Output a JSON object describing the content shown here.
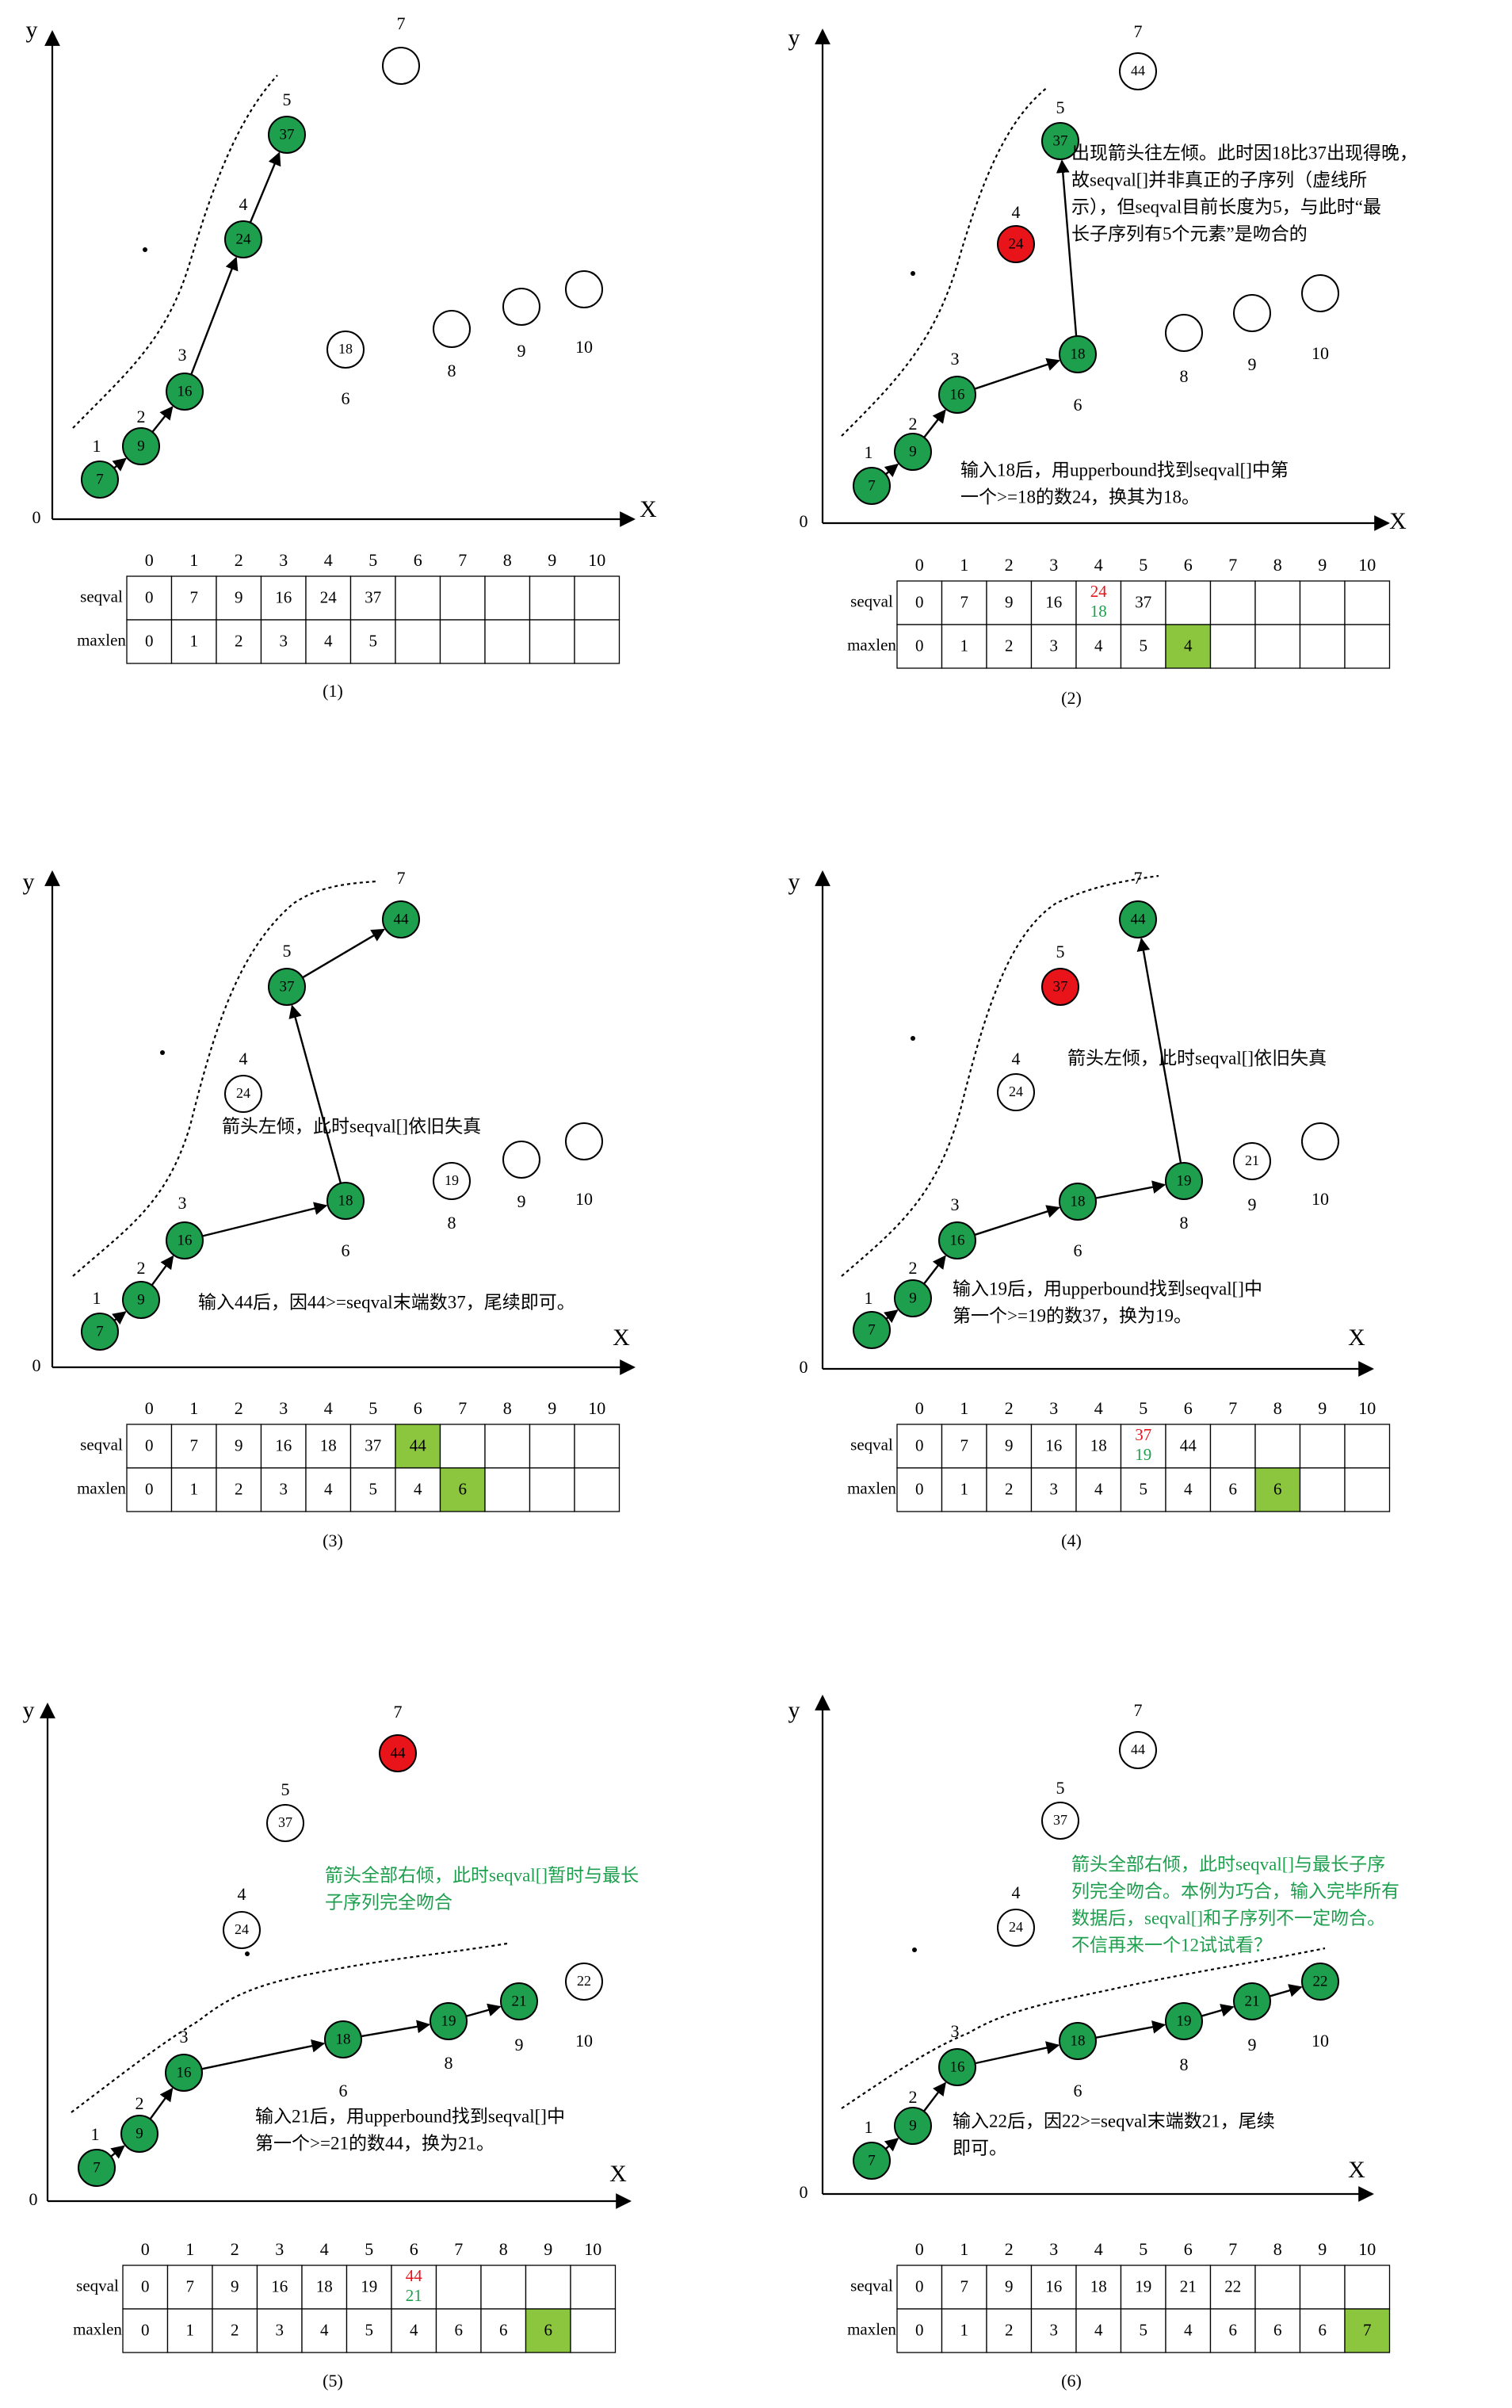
{
  "colors": {
    "green": "#1e9f4e",
    "red": "#e8141a",
    "cell_green": "#8cc63f",
    "text_red": "#e8141a",
    "text_green": "#1e9f4e",
    "ink": "#000000"
  },
  "axis_labels": {
    "x": "X",
    "y": "y",
    "origin": "0"
  },
  "table_row_labels": [
    "seqval",
    "maxlen"
  ],
  "table_indices": [
    "0",
    "1",
    "2",
    "3",
    "4",
    "5",
    "6",
    "7",
    "8",
    "9",
    "10"
  ],
  "panels": [
    {
      "caption": "(1)",
      "nodes": [
        {
          "idx": "1",
          "val": "7",
          "state": "green"
        },
        {
          "idx": "2",
          "val": "9",
          "state": "green"
        },
        {
          "idx": "3",
          "val": "16",
          "state": "green"
        },
        {
          "idx": "4",
          "val": "24",
          "state": "green"
        },
        {
          "idx": "5",
          "val": "37",
          "state": "green"
        },
        {
          "idx": "6",
          "val": "18",
          "state": "white"
        },
        {
          "idx": "7",
          "val": "",
          "state": "white"
        },
        {
          "idx": "8",
          "val": "",
          "state": "white"
        },
        {
          "idx": "9",
          "val": "",
          "state": "white"
        },
        {
          "idx": "10",
          "val": "",
          "state": "white"
        }
      ],
      "annotations": [],
      "seqval": [
        "0",
        "7",
        "9",
        "16",
        "24",
        "37",
        "",
        "",
        "",
        "",
        ""
      ],
      "maxlen": [
        "0",
        "1",
        "2",
        "3",
        "4",
        "5",
        "",
        "",
        "",
        "",
        ""
      ],
      "seqval_change": null,
      "maxlen_highlight": null
    },
    {
      "caption": "(2)",
      "nodes": [
        {
          "idx": "1",
          "val": "7",
          "state": "green"
        },
        {
          "idx": "2",
          "val": "9",
          "state": "green"
        },
        {
          "idx": "3",
          "val": "16",
          "state": "green"
        },
        {
          "idx": "4",
          "val": "24",
          "state": "red"
        },
        {
          "idx": "5",
          "val": "37",
          "state": "green"
        },
        {
          "idx": "6",
          "val": "18",
          "state": "green"
        },
        {
          "idx": "7",
          "val": "44",
          "state": "white"
        },
        {
          "idx": "8",
          "val": "",
          "state": "white"
        },
        {
          "idx": "9",
          "val": "",
          "state": "white"
        },
        {
          "idx": "10",
          "val": "",
          "state": "white"
        }
      ],
      "annotations": [
        {
          "color": "black",
          "lines": [
            "出现箭头往左倾。此时因18比37出现得晚，",
            "故seqval[]并非真正的子序列（虚线所",
            "示），但seqval目前长度为5，与此时“最",
            "长子序列有5个元素”是吻合的"
          ]
        },
        {
          "color": "black",
          "lines": [
            "输入18后，用upperbound找到seqval[]中第",
            "一个>=18的数24，换其为18。"
          ]
        }
      ],
      "seqval": [
        "0",
        "7",
        "9",
        "16",
        "",
        "37",
        "",
        "",
        "",
        "",
        ""
      ],
      "maxlen": [
        "0",
        "1",
        "2",
        "3",
        "4",
        "5",
        "4",
        "",
        "",
        "",
        ""
      ],
      "seqval_change": {
        "col": 4,
        "old": "24",
        "new": "18"
      },
      "maxlen_highlight": 6
    },
    {
      "caption": "(3)",
      "nodes": [
        {
          "idx": "1",
          "val": "7",
          "state": "green"
        },
        {
          "idx": "2",
          "val": "9",
          "state": "green"
        },
        {
          "idx": "3",
          "val": "16",
          "state": "green"
        },
        {
          "idx": "4",
          "val": "24",
          "state": "white"
        },
        {
          "idx": "5",
          "val": "37",
          "state": "green"
        },
        {
          "idx": "6",
          "val": "18",
          "state": "green"
        },
        {
          "idx": "7",
          "val": "44",
          "state": "green"
        },
        {
          "idx": "8",
          "val": "19",
          "state": "white"
        },
        {
          "idx": "9",
          "val": "",
          "state": "white"
        },
        {
          "idx": "10",
          "val": "",
          "state": "white"
        }
      ],
      "annotations": [
        {
          "color": "black",
          "lines": [
            "箭头左倾，此时seqval[]依旧失真"
          ]
        },
        {
          "color": "black",
          "lines": [
            "输入44后，因44>=seqval末端数37，尾续即可。"
          ]
        }
      ],
      "seqval": [
        "0",
        "7",
        "9",
        "16",
        "18",
        "37",
        "44",
        "",
        "",
        "",
        ""
      ],
      "maxlen": [
        "0",
        "1",
        "2",
        "3",
        "4",
        "5",
        "4",
        "6",
        "",
        "",
        ""
      ],
      "seqval_change": null,
      "seqval_highlight": 6,
      "maxlen_highlight": 7
    },
    {
      "caption": "(4)",
      "nodes": [
        {
          "idx": "1",
          "val": "7",
          "state": "green"
        },
        {
          "idx": "2",
          "val": "9",
          "state": "green"
        },
        {
          "idx": "3",
          "val": "16",
          "state": "green"
        },
        {
          "idx": "4",
          "val": "24",
          "state": "white"
        },
        {
          "idx": "5",
          "val": "37",
          "state": "red"
        },
        {
          "idx": "6",
          "val": "18",
          "state": "green"
        },
        {
          "idx": "7",
          "val": "44",
          "state": "green"
        },
        {
          "idx": "8",
          "val": "19",
          "state": "green"
        },
        {
          "idx": "9",
          "val": "21",
          "state": "white"
        },
        {
          "idx": "10",
          "val": "",
          "state": "white"
        }
      ],
      "annotations": [
        {
          "color": "black",
          "lines": [
            "箭头左倾，此时seqval[]依旧失真"
          ]
        },
        {
          "color": "black",
          "lines": [
            "输入19后，用upperbound找到seqval[]中",
            "第一个>=19的数37，换为19。"
          ]
        }
      ],
      "seqval": [
        "0",
        "7",
        "9",
        "16",
        "18",
        "",
        "44",
        "",
        "",
        "",
        ""
      ],
      "maxlen": [
        "0",
        "1",
        "2",
        "3",
        "4",
        "5",
        "4",
        "6",
        "6",
        "",
        ""
      ],
      "seqval_change": {
        "col": 5,
        "old": "37",
        "new": "19"
      },
      "maxlen_highlight": 8
    },
    {
      "caption": "(5)",
      "nodes": [
        {
          "idx": "1",
          "val": "7",
          "state": "green"
        },
        {
          "idx": "2",
          "val": "9",
          "state": "green"
        },
        {
          "idx": "3",
          "val": "16",
          "state": "green"
        },
        {
          "idx": "4",
          "val": "24",
          "state": "white"
        },
        {
          "idx": "5",
          "val": "37",
          "state": "white"
        },
        {
          "idx": "6",
          "val": "18",
          "state": "green"
        },
        {
          "idx": "7",
          "val": "44",
          "state": "red"
        },
        {
          "idx": "8",
          "val": "19",
          "state": "green"
        },
        {
          "idx": "9",
          "val": "21",
          "state": "green"
        },
        {
          "idx": "10",
          "val": "22",
          "state": "white"
        }
      ],
      "annotations": [
        {
          "color": "green",
          "lines": [
            "箭头全部右倾，此时seqval[]暂时与最长",
            "子序列完全吻合"
          ]
        },
        {
          "color": "black",
          "lines": [
            "输入21后，用upperbound找到seqval[]中",
            "第一个>=21的数44，换为21。"
          ]
        }
      ],
      "seqval": [
        "0",
        "7",
        "9",
        "16",
        "18",
        "19",
        "",
        "",
        "",
        "",
        ""
      ],
      "maxlen": [
        "0",
        "1",
        "2",
        "3",
        "4",
        "5",
        "4",
        "6",
        "6",
        "6",
        ""
      ],
      "seqval_change": {
        "col": 6,
        "old": "44",
        "new": "21"
      },
      "maxlen_highlight": 9
    },
    {
      "caption": "(6)",
      "nodes": [
        {
          "idx": "1",
          "val": "7",
          "state": "green"
        },
        {
          "idx": "2",
          "val": "9",
          "state": "green"
        },
        {
          "idx": "3",
          "val": "16",
          "state": "green"
        },
        {
          "idx": "4",
          "val": "24",
          "state": "white"
        },
        {
          "idx": "5",
          "val": "37",
          "state": "white"
        },
        {
          "idx": "6",
          "val": "18",
          "state": "green"
        },
        {
          "idx": "7",
          "val": "44",
          "state": "white"
        },
        {
          "idx": "8",
          "val": "19",
          "state": "green"
        },
        {
          "idx": "9",
          "val": "21",
          "state": "green"
        },
        {
          "idx": "10",
          "val": "22",
          "state": "green"
        }
      ],
      "annotations": [
        {
          "color": "green",
          "lines": [
            "箭头全部右倾，此时seqval[]与最长子序",
            "列完全吻合。本例为巧合，输入完毕所有",
            "数据后，seqval[]和子序列不一定吻合。",
            "不信再来一个12试试看？"
          ]
        },
        {
          "color": "black",
          "lines": [
            "输入22后，因22>=seqval末端数21，尾续",
            "即可。"
          ]
        }
      ],
      "seqval": [
        "0",
        "7",
        "9",
        "16",
        "18",
        "19",
        "21",
        "22",
        "",
        "",
        ""
      ],
      "maxlen": [
        "0",
        "1",
        "2",
        "3",
        "4",
        "5",
        "4",
        "6",
        "6",
        "6",
        "7"
      ],
      "seqval_change": null,
      "maxlen_highlight": 10
    }
  ]
}
